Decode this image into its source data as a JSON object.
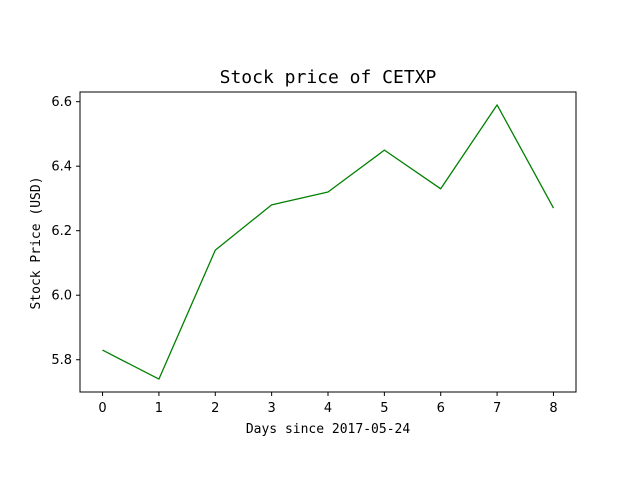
{
  "chart_data": {
    "type": "line",
    "title": "Stock price of CETXP",
    "xlabel": "Days since 2017-05-24",
    "ylabel": "Stock Price (USD)",
    "x": [
      0,
      1,
      2,
      3,
      4,
      5,
      6,
      7,
      8
    ],
    "series": [
      {
        "values": [
          5.83,
          5.74,
          6.14,
          6.28,
          6.32,
          6.45,
          6.33,
          6.59,
          6.27
        ],
        "color": "#008000"
      }
    ],
    "xlim": [
      -0.4,
      8.4
    ],
    "ylim": [
      5.7,
      6.63
    ],
    "xticks": [
      0,
      1,
      2,
      3,
      4,
      5,
      6,
      7,
      8
    ],
    "yticks": [
      5.8,
      6.0,
      6.2,
      6.4,
      6.6
    ],
    "ytick_labels": [
      "5.8",
      "6.0",
      "6.2",
      "6.4",
      "6.6"
    ],
    "grid": false,
    "legend": false
  }
}
